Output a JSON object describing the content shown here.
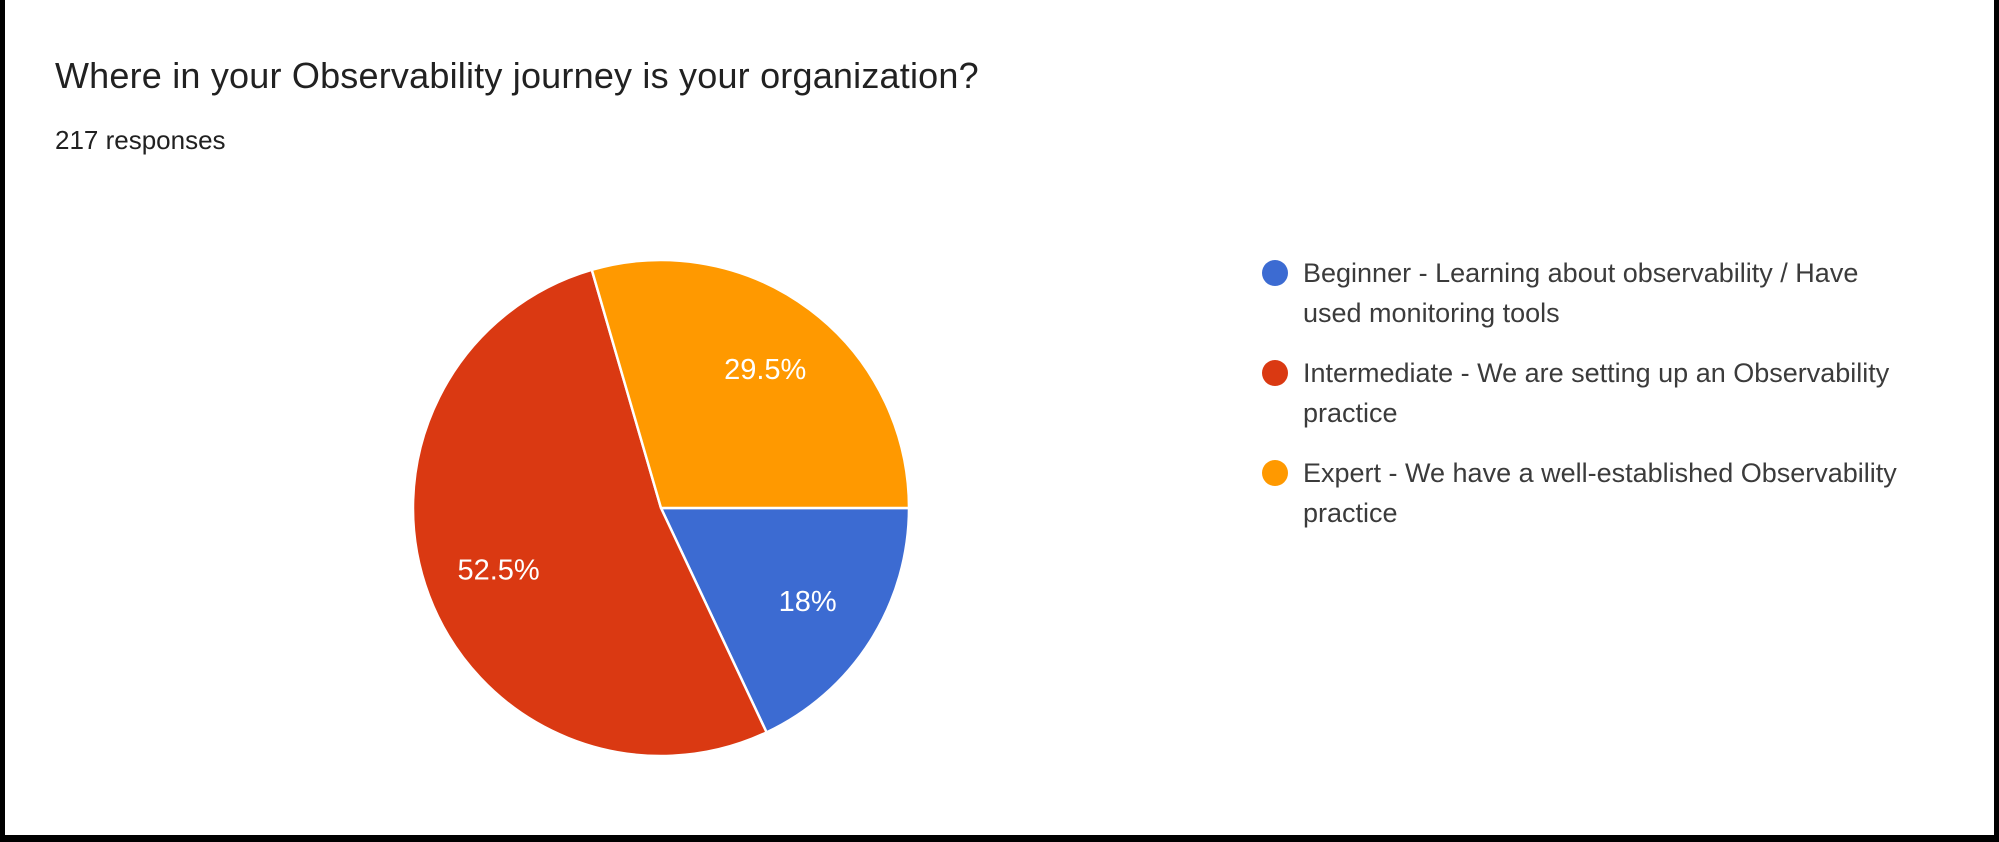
{
  "header": {
    "title": "Where in your Observability journey is your organization?",
    "subtitle": "217 responses"
  },
  "chart_data": {
    "type": "pie",
    "title": "Where in your Observability journey is your organization?",
    "responses_count": 217,
    "legend_position": "right",
    "start_angle_deg": 90,
    "direction": "clockwise",
    "label_radius_ratio": 0.7,
    "slices": [
      {
        "label": "Beginner - Learning about observability / Have used monitoring tools",
        "value_pct": 18,
        "display": "18%",
        "color": "#3C6BD2"
      },
      {
        "label": "Intermediate - We are setting up an Observability practice",
        "value_pct": 52.5,
        "display": "52.5%",
        "color": "#DA3912"
      },
      {
        "label": "Expert - We have a well-established Observability practice",
        "value_pct": 29.5,
        "display": "29.5%",
        "color": "#FF9900"
      }
    ],
    "slice_label_color": "#ffffff"
  }
}
